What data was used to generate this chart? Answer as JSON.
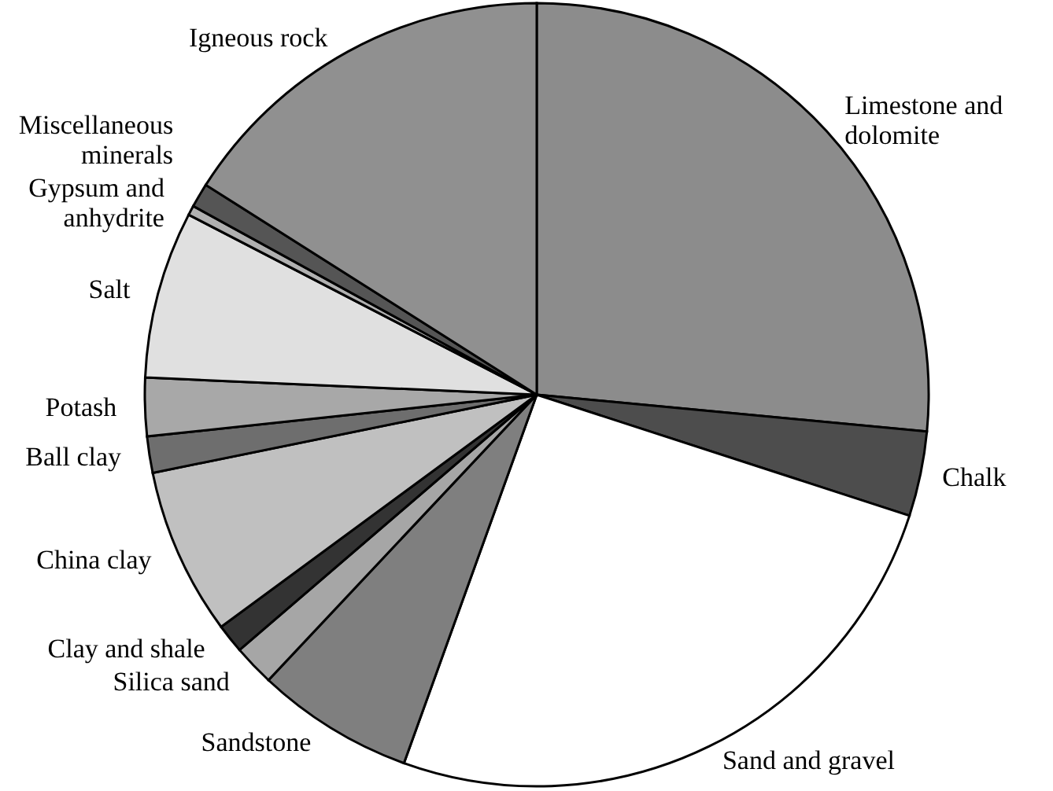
{
  "chart_data": {
    "type": "pie",
    "categories": [
      "Limestone and dolomite",
      "Chalk",
      "Sand and gravel",
      "Sandstone",
      "Silica sand",
      "Clay and shale",
      "China clay",
      "Ball clay",
      "Potash",
      "Salt",
      "Gypsum and anhydrite",
      "Miscellaneous minerals",
      "Igneous rock"
    ],
    "values": [
      26.5,
      3.5,
      25.5,
      6.5,
      1.7,
      1.2,
      6.9,
      1.5,
      2.4,
      6.9,
      0.4,
      1.0,
      16.0
    ],
    "colors": [
      "#8c8c8c",
      "#4d4d4d",
      "#ffffff",
      "#7f7f7f",
      "#a6a6a6",
      "#333333",
      "#c0c0c0",
      "#6e6e6e",
      "#a8a8a8",
      "#e0e0e0",
      "#b0b0b0",
      "#555555",
      "#909090"
    ]
  }
}
